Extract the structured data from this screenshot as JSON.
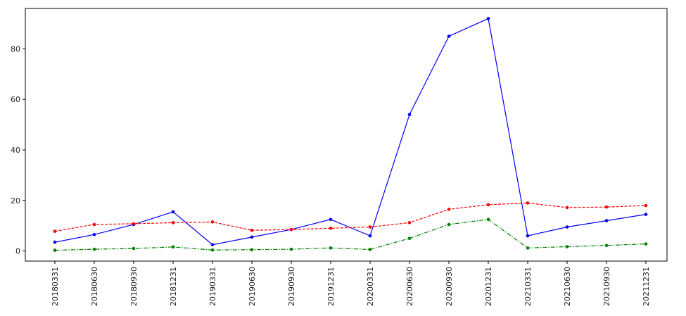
{
  "chart_data": {
    "type": "line",
    "title": "",
    "xlabel": "",
    "ylabel": "",
    "categories": [
      "20180331",
      "20180630",
      "20180930",
      "20181231",
      "20190331",
      "20190630",
      "20190930",
      "20191231",
      "20200331",
      "20200630",
      "20200930",
      "20201231",
      "20210331",
      "20210630",
      "20210930",
      "20211231"
    ],
    "ylim": [
      -4,
      96
    ],
    "yticks": [
      0,
      20,
      40,
      60,
      80
    ],
    "grid": false,
    "legend": "none",
    "series": [
      {
        "color": "#0000ff",
        "linestyle": "solid",
        "marker": "dot",
        "values": [
          3.5,
          6.5,
          10.5,
          15.5,
          2.5,
          5.5,
          8.5,
          12.5,
          6.0,
          54.0,
          85.0,
          92.0,
          6.0,
          9.5,
          12.0,
          14.5
        ]
      },
      {
        "color": "#ff0000",
        "linestyle": "dashed",
        "marker": "dot",
        "values": [
          7.8,
          10.5,
          10.8,
          11.2,
          11.5,
          8.2,
          8.5,
          9.0,
          9.5,
          11.2,
          16.5,
          18.3,
          19.0,
          17.2,
          17.4,
          18.0
        ]
      },
      {
        "color": "#008000",
        "linestyle": "dashdot",
        "marker": "dot",
        "values": [
          0.3,
          0.7,
          1.0,
          1.6,
          0.4,
          0.5,
          0.7,
          1.2,
          0.6,
          5.0,
          10.5,
          12.5,
          1.2,
          1.7,
          2.2,
          2.8
        ]
      }
    ]
  }
}
